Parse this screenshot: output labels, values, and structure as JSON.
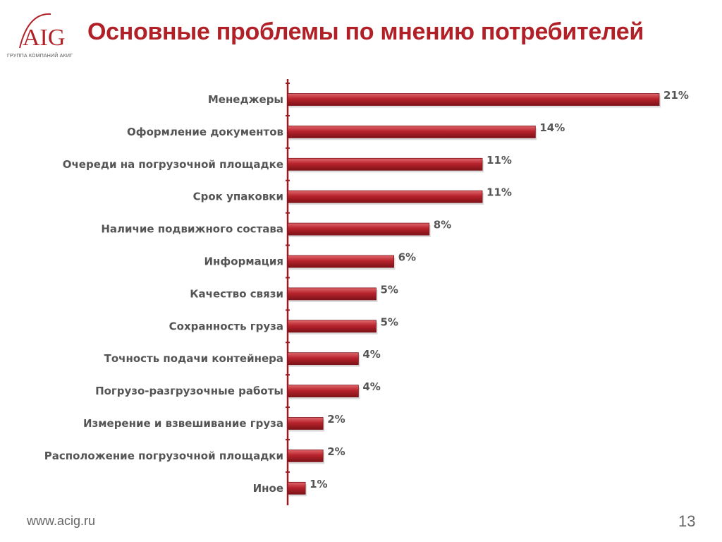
{
  "header": {
    "title": "Основные проблемы по мнению потребителей",
    "logo_text": "AIG",
    "logo_subtitle": "ГРУППА КОМПАНИЙ АКИГ"
  },
  "footer": {
    "url": "www.acig.ru",
    "page_number": "13"
  },
  "colors": {
    "bar": "#b8232c",
    "bar_light": "#e0676d",
    "bar_dark": "#7d1218",
    "axis": "#9c1a22",
    "title": "#b12027"
  },
  "chart_data": {
    "type": "bar",
    "orientation": "horizontal",
    "categories": [
      "Менеджеры",
      "Оформление документов",
      "Очереди на погрузочной площадке",
      "Срок упаковки",
      "Наличие подвижного состава",
      "Информация",
      "Качество связи",
      "Сохранность груза",
      "Точность подачи контейнера",
      "Погрузо-разгрузочные работы",
      "Измерение и взвешивание груза",
      "Расположение погрузочной площадки",
      "Иное"
    ],
    "values": [
      21,
      14,
      11,
      11,
      8,
      6,
      5,
      5,
      4,
      4,
      2,
      2,
      1
    ],
    "value_labels": [
      "21%",
      "14%",
      "11%",
      "11%",
      "8%",
      "6%",
      "5%",
      "5%",
      "4%",
      "4%",
      "2%",
      "2%",
      "1%"
    ],
    "unit": "%",
    "xlim": [
      0,
      21
    ],
    "grid": false,
    "legend": "none"
  }
}
